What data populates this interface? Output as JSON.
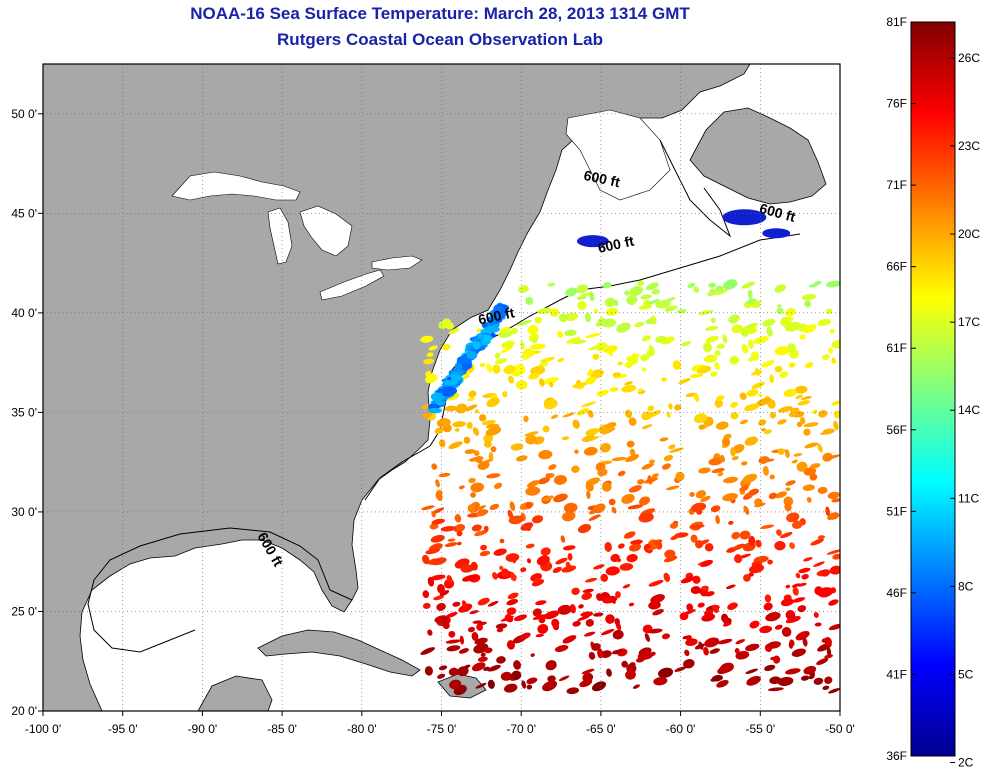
{
  "header": {
    "title": "NOAA-16 Sea Surface Temperature:  March 28, 2013 1314 GMT",
    "subtitle": "Rutgers Coastal Ocean Observation Lab"
  },
  "map": {
    "lon_range": [
      -100,
      -50
    ],
    "lat_range": [
      20,
      52.5
    ],
    "x_ticks": [
      {
        "lon": -100,
        "label": "-100 0'"
      },
      {
        "lon": -95,
        "label": "-95 0'"
      },
      {
        "lon": -90,
        "label": "-90 0'"
      },
      {
        "lon": -85,
        "label": "-85 0'"
      },
      {
        "lon": -80,
        "label": "-80 0'"
      },
      {
        "lon": -75,
        "label": "-75 0'"
      },
      {
        "lon": -70,
        "label": "-70 0'"
      },
      {
        "lon": -65,
        "label": "-65 0'"
      },
      {
        "lon": -60,
        "label": "-60 0'"
      },
      {
        "lon": -55,
        "label": "-55 0'"
      },
      {
        "lon": -50,
        "label": "-50 0'"
      }
    ],
    "y_ticks": [
      {
        "lat": 20,
        "label": "20 0'"
      },
      {
        "lat": 25,
        "label": "25 0'"
      },
      {
        "lat": 30,
        "label": "30 0'"
      },
      {
        "lat": 35,
        "label": "35 0'"
      },
      {
        "lat": 40,
        "label": "40 0'"
      },
      {
        "lat": 45,
        "label": "45 0'"
      },
      {
        "lat": 50,
        "label": "50 0'"
      }
    ],
    "contour_labels": [
      {
        "text": "600 ft",
        "lon": -65.0,
        "lat": 46.5,
        "rotate": 12
      },
      {
        "text": "600 ft",
        "lon": -54.0,
        "lat": 44.8,
        "rotate": 15
      },
      {
        "text": "600 ft",
        "lon": -64.0,
        "lat": 43.2,
        "rotate": -12
      },
      {
        "text": "600 ft",
        "lon": -71.5,
        "lat": 39.6,
        "rotate": -12
      },
      {
        "text": "600 ft",
        "lon": -86.0,
        "lat": 28.0,
        "rotate": 60
      }
    ],
    "colors": {
      "land": "#a8a8a8",
      "ocean": "#ffffff",
      "grid": "#666666"
    }
  },
  "colorbar": {
    "f_ticks": [
      {
        "value": 81,
        "label": "81F"
      },
      {
        "value": 76,
        "label": "76F"
      },
      {
        "value": 71,
        "label": "71F"
      },
      {
        "value": 66,
        "label": "66F"
      },
      {
        "value": 61,
        "label": "61F"
      },
      {
        "value": 56,
        "label": "56F"
      },
      {
        "value": 51,
        "label": "51F"
      },
      {
        "value": 46,
        "label": "46F"
      },
      {
        "value": 41,
        "label": "41F"
      },
      {
        "value": 36,
        "label": "36F"
      }
    ],
    "c_ticks": [
      {
        "value": 26,
        "label": "26C"
      },
      {
        "value": 23,
        "label": "23C"
      },
      {
        "value": 20,
        "label": "20C"
      },
      {
        "value": 17,
        "label": "17C"
      },
      {
        "value": 14,
        "label": "14C"
      },
      {
        "value": 11,
        "label": "11C"
      },
      {
        "value": 8,
        "label": "8C"
      },
      {
        "value": 5,
        "label": "5C"
      },
      {
        "value": 2,
        "label": "2C"
      }
    ],
    "range_f": [
      36,
      81
    ],
    "jet_stops": [
      "#00008f",
      "#0000ff",
      "#0080ff",
      "#00ffff",
      "#80ff80",
      "#ffff00",
      "#ff8000",
      "#ff0000",
      "#800000"
    ]
  }
}
